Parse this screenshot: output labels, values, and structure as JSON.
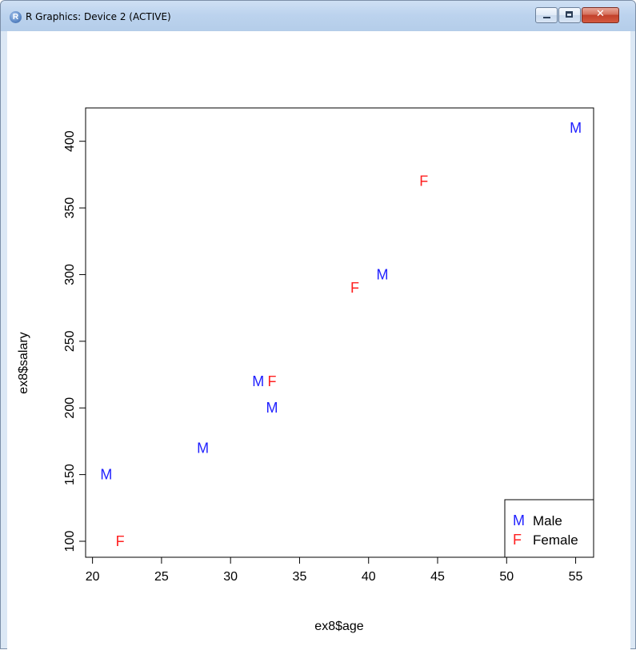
{
  "window": {
    "title": "R Graphics: Device 2 (ACTIVE)",
    "app_icon_letter": "R",
    "icons": {
      "app": "r-logo-icon",
      "minimize": "minimize-icon",
      "maximize": "maximize-icon",
      "close": "close-icon"
    },
    "close_glyph": "✕"
  },
  "chart_data": {
    "type": "scatter",
    "xlabel": "ex8$age",
    "ylabel": "ex8$salary",
    "xlim": [
      19.5,
      56.3
    ],
    "ylim": [
      88,
      425
    ],
    "xticks": [
      20,
      25,
      30,
      35,
      40,
      45,
      50,
      55
    ],
    "yticks": [
      100,
      150,
      200,
      250,
      300,
      350,
      400
    ],
    "grid": false,
    "points": [
      {
        "x": 21,
        "y": 150,
        "label": "M",
        "color": "#1f1fff"
      },
      {
        "x": 22,
        "y": 100,
        "label": "F",
        "color": "#ff2020"
      },
      {
        "x": 28,
        "y": 170,
        "label": "M",
        "color": "#1f1fff"
      },
      {
        "x": 32,
        "y": 220,
        "label": "M",
        "color": "#1f1fff"
      },
      {
        "x": 33,
        "y": 220,
        "label": "F",
        "color": "#ff2020"
      },
      {
        "x": 33,
        "y": 200,
        "label": "M",
        "color": "#1f1fff"
      },
      {
        "x": 39,
        "y": 290,
        "label": "F",
        "color": "#ff2020"
      },
      {
        "x": 41,
        "y": 300,
        "label": "M",
        "color": "#1f1fff"
      },
      {
        "x": 44,
        "y": 370,
        "label": "F",
        "color": "#ff2020"
      },
      {
        "x": 55,
        "y": 410,
        "label": "M",
        "color": "#1f1fff"
      }
    ],
    "legend": {
      "position": "bottom-right",
      "entries": [
        {
          "symbol": "M",
          "label": "Male",
          "color": "#1f1fff"
        },
        {
          "symbol": "F",
          "label": "Female",
          "color": "#ff2020"
        }
      ]
    }
  }
}
